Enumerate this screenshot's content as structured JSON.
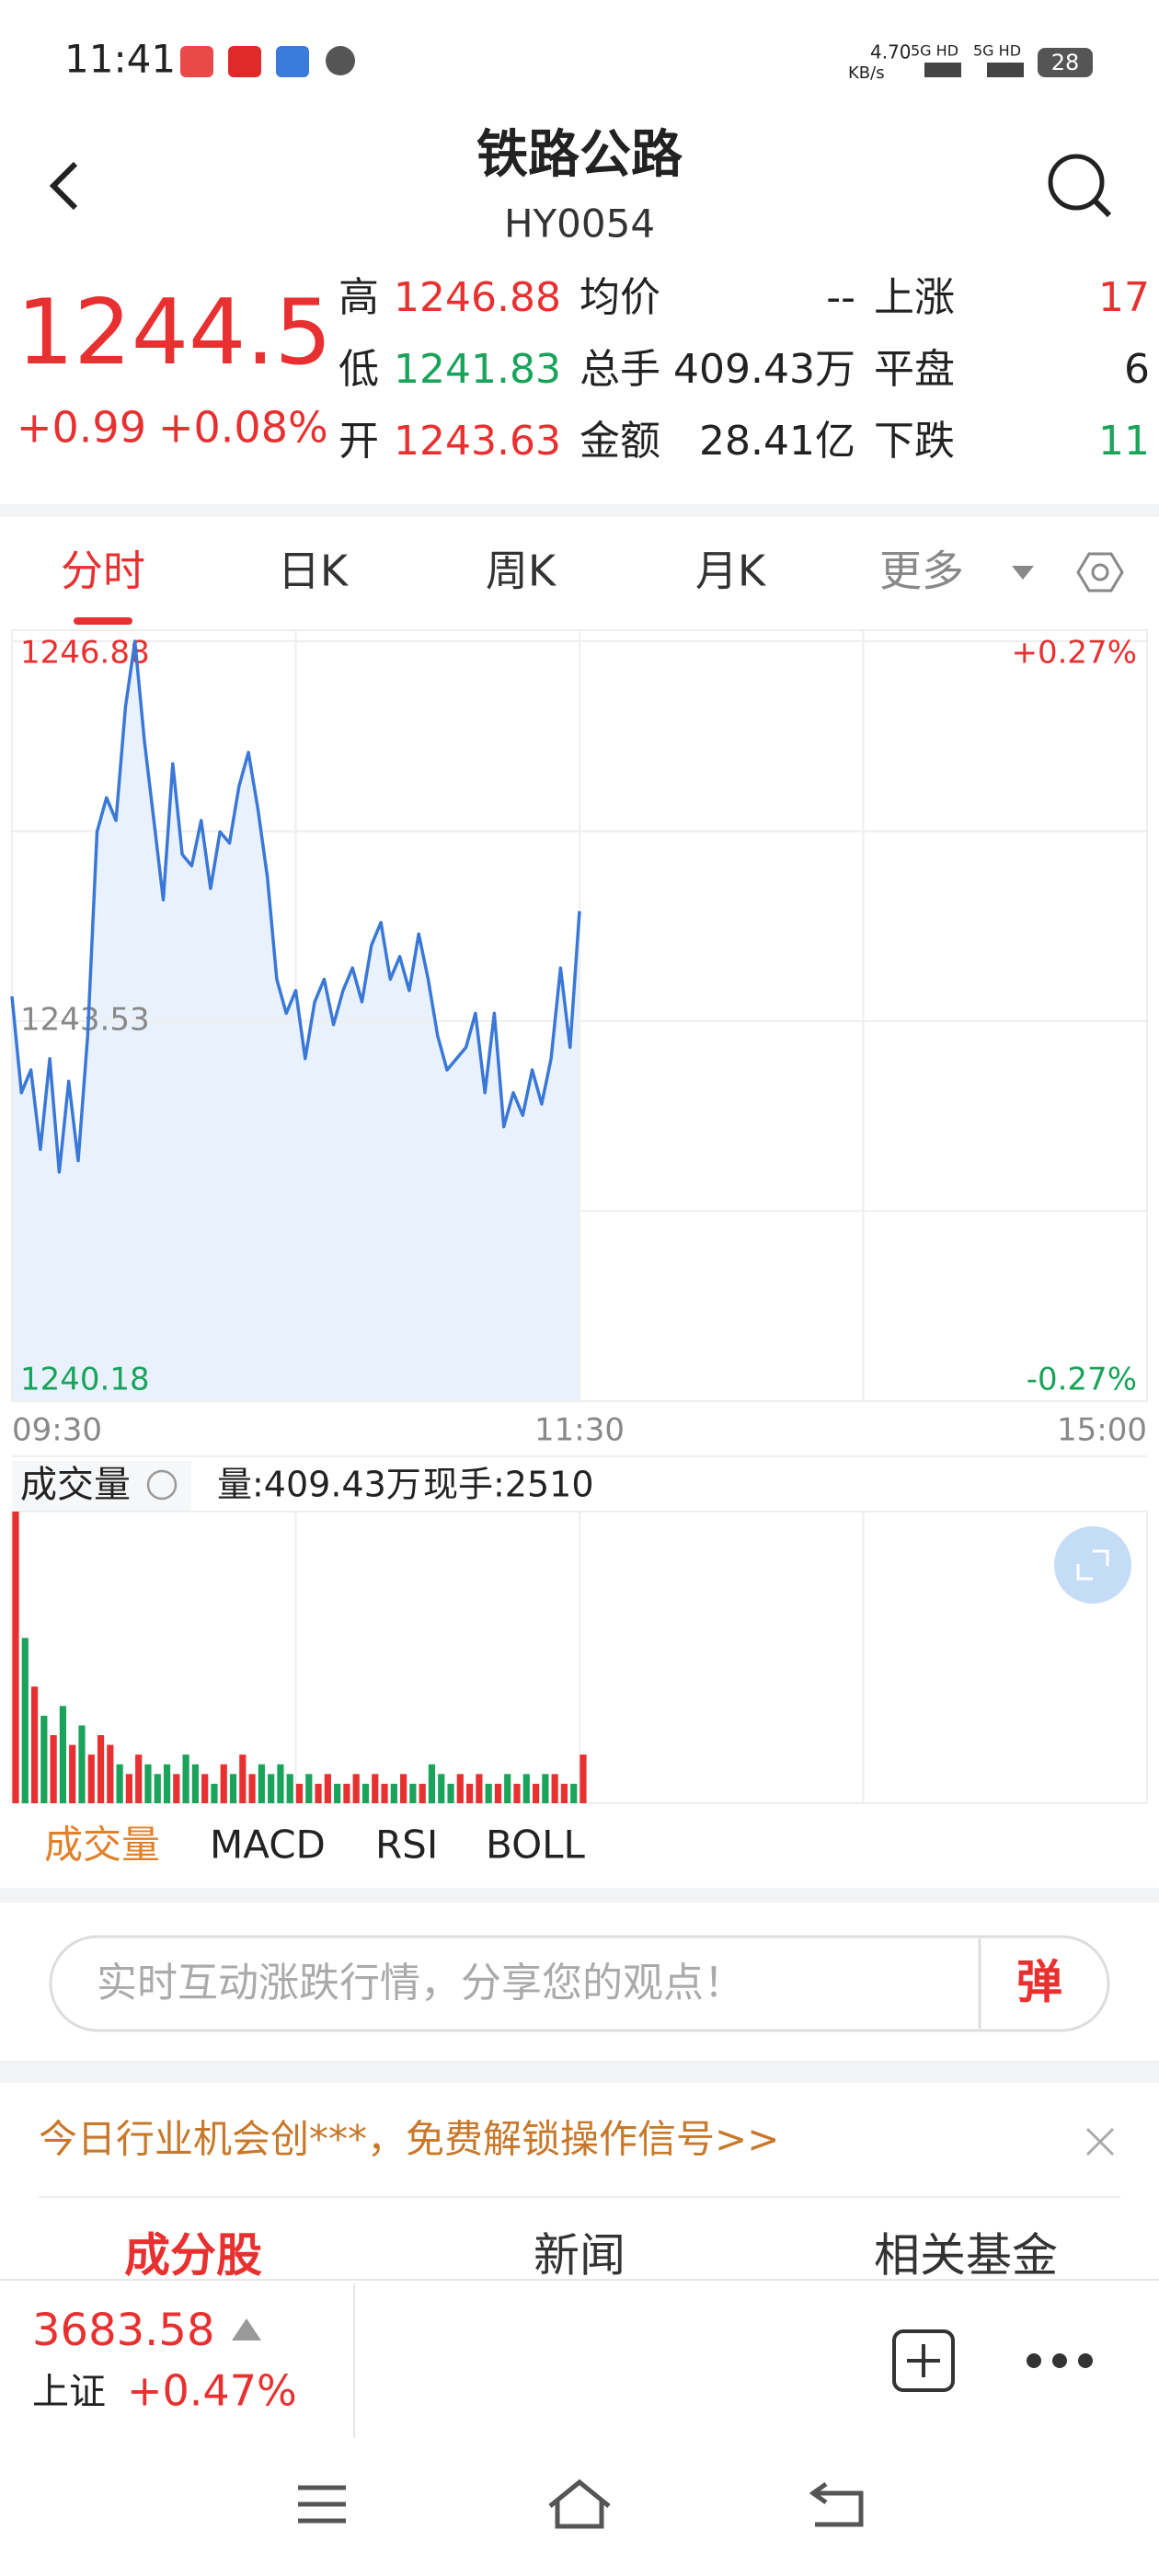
{
  "status_bar": {
    "time": "11:41",
    "speed": "4.70",
    "speed_unit": "KB/s",
    "network": [
      "5G HD",
      "5G HD"
    ],
    "battery": "28"
  },
  "header": {
    "title": "铁路公路",
    "code": "HY0054"
  },
  "quote": {
    "price": "1244.5",
    "change": "+0.99",
    "change_pct": "+0.08%"
  },
  "stats": [
    [
      {
        "label": "高",
        "value": "1246.88"
      },
      {
        "label": "均价",
        "value": "--"
      },
      {
        "label": "上涨",
        "value": "17"
      }
    ],
    [
      {
        "label": "低",
        "value": "1241.83"
      },
      {
        "label": "总手",
        "value": "409.43万"
      },
      {
        "label": "平盘",
        "value": "6"
      }
    ],
    [
      {
        "label": "开",
        "value": "1243.63"
      },
      {
        "label": "金额",
        "value": "28.41亿"
      },
      {
        "label": "下跌",
        "value": "11"
      }
    ]
  ],
  "tabs": [
    "分时",
    "日K",
    "周K",
    "月K",
    "更多"
  ],
  "chart_data": [
    {
      "type": "line",
      "values": [
        1243.75,
        1242.9,
        1243.1,
        1242.4,
        1243.2,
        1242.2,
        1243.0,
        1242.3,
        1243.4,
        1245.2,
        1245.5,
        1245.3,
        1246.3,
        1246.88,
        1246.0,
        1245.3,
        1244.6,
        1245.8,
        1245.0,
        1244.9,
        1245.3,
        1244.7,
        1245.2,
        1245.1,
        1245.6,
        1245.9,
        1245.4,
        1244.8,
        1243.9,
        1243.6,
        1243.8,
        1243.2,
        1243.7,
        1243.9,
        1243.5,
        1243.8,
        1244.0,
        1243.7,
        1244.2,
        1244.4,
        1243.9,
        1244.1,
        1243.8,
        1244.3,
        1243.9,
        1243.4,
        1243.1,
        1243.2,
        1243.3,
        1243.6,
        1242.9,
        1243.6,
        1242.6,
        1242.9,
        1242.7,
        1243.1,
        1242.8,
        1243.2,
        1244.0,
        1243.3,
        1244.5
      ],
      "xlim": [
        0,
        120
      ],
      "xticks": [
        {
          "value": 0,
          "label": "09:30"
        },
        {
          "value": 60,
          "label": "11:30"
        },
        {
          "value": 120,
          "label": "15:00"
        }
      ],
      "ylim": [
        1240.18,
        1246.88
      ],
      "yticks": [
        1240.18,
        1243.53,
        1246.88
      ],
      "y2lim": [
        -0.27,
        0.27
      ],
      "y2ticks": [
        {
          "value": -0.27,
          "label": "-0.27%"
        },
        {
          "value": 0.27,
          "label": "+0.27%"
        }
      ],
      "color": "#3a78d8",
      "area_color": "#e9f1fd",
      "grid": true
    },
    {
      "type": "bar",
      "values": [
        30,
        17,
        12,
        9,
        7,
        10,
        6,
        8,
        5,
        7,
        6,
        4,
        3,
        5,
        4,
        3,
        4,
        3,
        5,
        4,
        3,
        2,
        4,
        3,
        5,
        3,
        4,
        3,
        4,
        3,
        2,
        3,
        2,
        3,
        2,
        2,
        3,
        2,
        3,
        2,
        2,
        3,
        2,
        2,
        4,
        3,
        2,
        3,
        2,
        3,
        2,
        2,
        3,
        2,
        3,
        2,
        3,
        3,
        2,
        2,
        5
      ],
      "xlim": [
        0,
        120
      ],
      "ylim": [
        0,
        30
      ],
      "up_color": "#e93030",
      "down_color": "#1aa35a"
    }
  ],
  "volume_info": {
    "label": "成交量",
    "volume": "量:409.43万",
    "current": "现手:2510"
  },
  "indicators": [
    "成交量",
    "MACD",
    "RSI",
    "BOLL"
  ],
  "comment": {
    "placeholder": "实时互动涨跌行情，分享您的观点！",
    "button": "弹"
  },
  "promo": "今日行业机会创***，免费解锁操作信号>>",
  "section_tabs": [
    "成分股",
    "新闻",
    "相关基金"
  ],
  "index_bar": {
    "value": "3683.58",
    "name": "上证",
    "change": "+0.47%"
  }
}
